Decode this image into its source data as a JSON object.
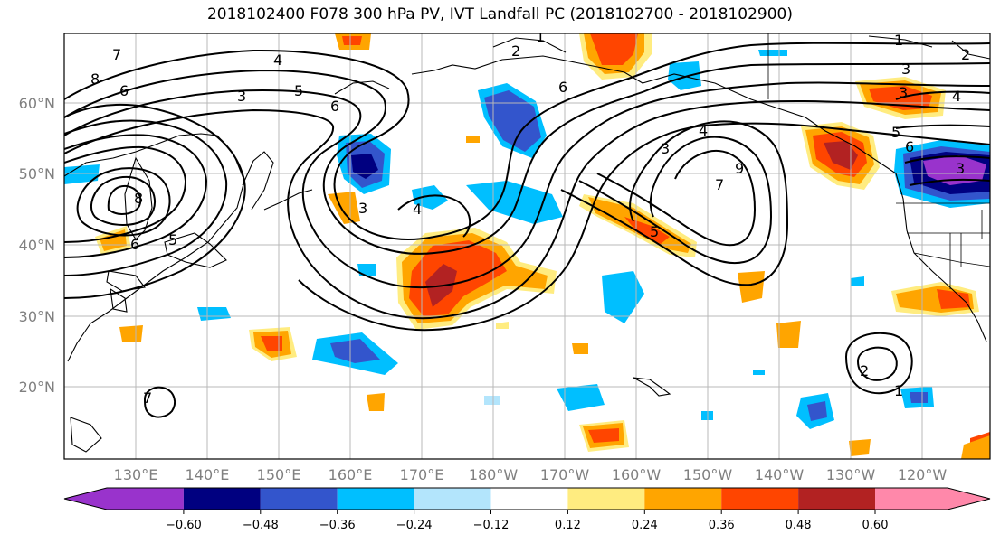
{
  "title": "2018102400 F078 300 hPa PV, IVT Landfall PC (2018102700 - 2018102900)",
  "map": {
    "lat_labels": [
      "60°N",
      "50°N",
      "40°N",
      "30°N",
      "20°N"
    ],
    "lon_labels": [
      "130°E",
      "140°E",
      "150°E",
      "160°E",
      "170°E",
      "180°W",
      "170°W",
      "160°W",
      "150°W",
      "140°W",
      "130°W",
      "120°W"
    ]
  },
  "colorbar": {
    "tick_labels": [
      "−0.60",
      "−0.48",
      "−0.36",
      "−0.24",
      "−0.12",
      "0.12",
      "0.24",
      "0.36",
      "0.48",
      "0.60"
    ],
    "colors": [
      "#9933cc",
      "#000080",
      "#3355cc",
      "#00bfff",
      "#b3e5fc",
      "#ffffff",
      "#ffec80",
      "#ffa500",
      "#ff4500",
      "#b22222",
      "#ff88aa"
    ]
  },
  "contour_labels": [
    "8",
    "7",
    "6",
    "4",
    "3",
    "5",
    "6",
    "8",
    "5",
    "6",
    "4",
    "3",
    "2",
    "1",
    "6",
    "3",
    "4",
    "9",
    "7",
    "5",
    "1",
    "2",
    "3",
    "4",
    "3",
    "5",
    "6",
    "3",
    "2",
    "1",
    "7"
  ]
}
